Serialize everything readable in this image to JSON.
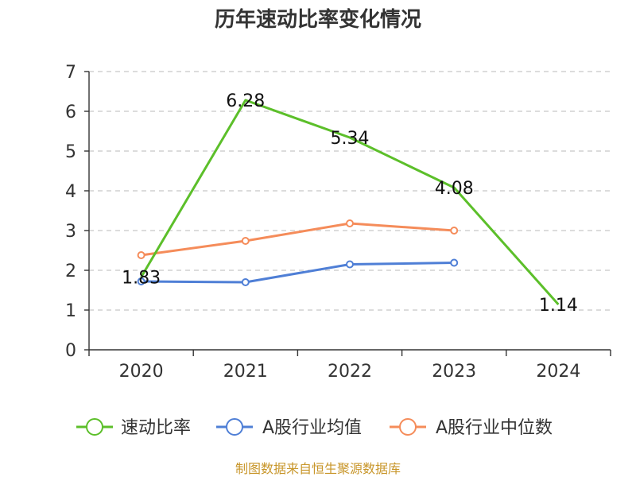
{
  "chart_data": {
    "type": "line",
    "title": "历年速动比率变化情况",
    "categories": [
      "2020",
      "2021",
      "2022",
      "2023",
      "2024"
    ],
    "ylim": [
      0,
      7
    ],
    "yticks": [
      "0",
      "1",
      "2",
      "3",
      "4",
      "5",
      "6",
      "7"
    ],
    "grid": true,
    "legend_position": "bottom",
    "series": [
      {
        "name": "速动比率",
        "color": "#5cbf2a",
        "values": [
          1.83,
          6.28,
          5.34,
          4.08,
          1.14
        ],
        "labels": [
          "1.83",
          "6.28",
          "5.34",
          "4.08",
          "1.14"
        ]
      },
      {
        "name": "A股行业均值",
        "color": "#4f7fd6",
        "values": [
          1.72,
          1.7,
          2.15,
          2.19,
          null
        ]
      },
      {
        "name": "A股行业中位数",
        "color": "#f58c5a",
        "values": [
          2.38,
          2.74,
          3.18,
          3.0,
          null
        ]
      }
    ]
  },
  "footer": {
    "source": "制图数据来自恒生聚源数据库"
  }
}
